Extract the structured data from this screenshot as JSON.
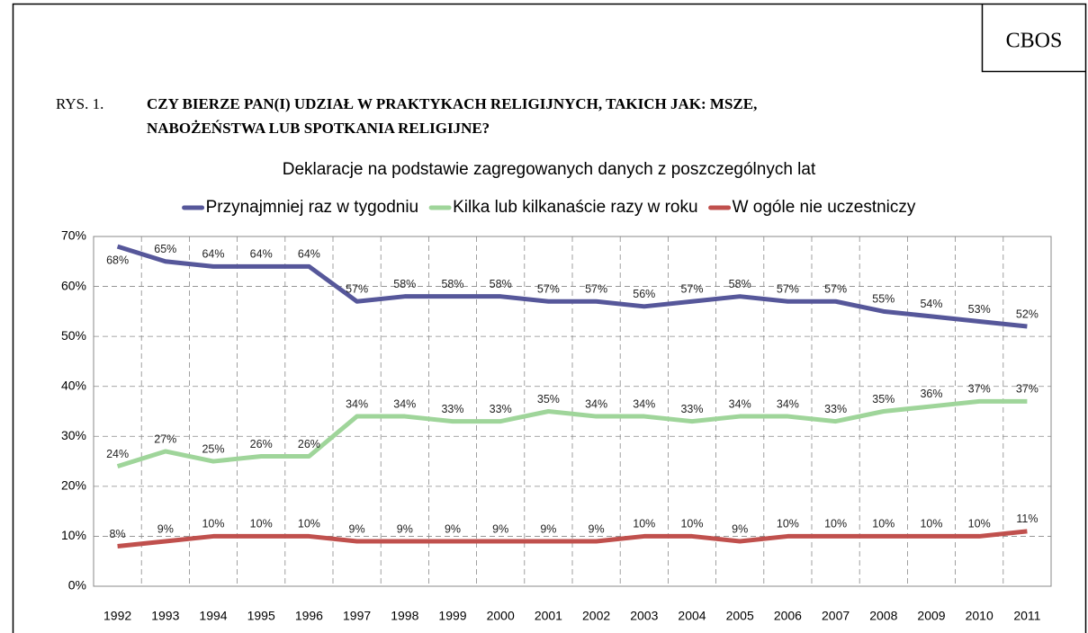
{
  "chart_data": {
    "type": "line",
    "source": "CBOS",
    "figure_label": "RYS. 1.",
    "title_lines": [
      "CZY BIERZE PAN(I) UDZIAŁ W PRAKTYKACH RELIGIJNYCH, TAKICH JAK: MSZE,",
      "NABOŻEŃSTWA LUB SPOTKANIA RELIGIJNE?"
    ],
    "subtitle": "Deklaracje na podstawie zagregowanych danych z poszczególnych lat",
    "categories": [
      "1992",
      "1993",
      "1994",
      "1995",
      "1996",
      "1997",
      "1998",
      "1999",
      "2000",
      "2001",
      "2002",
      "2003",
      "2004",
      "2005",
      "2006",
      "2007",
      "2008",
      "2009",
      "2010",
      "2011"
    ],
    "series": [
      {
        "name": "Przynajmniej raz w tygodniu",
        "color": "#56579a",
        "values": [
          68,
          65,
          64,
          64,
          64,
          57,
          58,
          58,
          58,
          57,
          57,
          56,
          57,
          58,
          57,
          57,
          55,
          54,
          53,
          52
        ],
        "value_labels": [
          "68%",
          "65%",
          "64%",
          "64%",
          "64%",
          "57%",
          "58%",
          "58%",
          "58%",
          "57%",
          "57%",
          "56%",
          "57%",
          "58%",
          "57%",
          "57%",
          "55%",
          "54%",
          "53%",
          "52%"
        ]
      },
      {
        "name": "Kilka lub kilkanaście razy w roku",
        "color": "#9fd59a",
        "values": [
          24,
          27,
          25,
          26,
          26,
          34,
          34,
          33,
          33,
          35,
          34,
          34,
          33,
          34,
          34,
          33,
          35,
          36,
          37,
          37
        ],
        "value_labels": [
          "24%",
          "27%",
          "25%",
          "26%",
          "26%",
          "34%",
          "34%",
          "33%",
          "33%",
          "35%",
          "34%",
          "34%",
          "33%",
          "34%",
          "34%",
          "33%",
          "35%",
          "36%",
          "37%",
          "37%"
        ]
      },
      {
        "name": "W ogóle nie uczestniczy",
        "color": "#c0504d",
        "values": [
          8,
          9,
          10,
          10,
          10,
          9,
          9,
          9,
          9,
          9,
          9,
          10,
          10,
          9,
          10,
          10,
          10,
          10,
          10,
          11
        ],
        "value_labels": [
          "8%",
          "9%",
          "10%",
          "10%",
          "10%",
          "9%",
          "9%",
          "9%",
          "9%",
          "9%",
          "9%",
          "10%",
          "10%",
          "9%",
          "10%",
          "10%",
          "10%",
          "10%",
          "10%",
          "11%"
        ]
      }
    ],
    "ylim": [
      0,
      70
    ],
    "yticks": [
      {
        "value": 0,
        "label": "0%"
      },
      {
        "value": 10,
        "label": "10%"
      },
      {
        "value": 20,
        "label": "20%"
      },
      {
        "value": 30,
        "label": "30%"
      },
      {
        "value": 40,
        "label": "40%"
      },
      {
        "value": 50,
        "label": "50%"
      },
      {
        "value": 60,
        "label": "60%"
      },
      {
        "value": 70,
        "label": "70%"
      }
    ],
    "grid": true,
    "legend": "top"
  }
}
